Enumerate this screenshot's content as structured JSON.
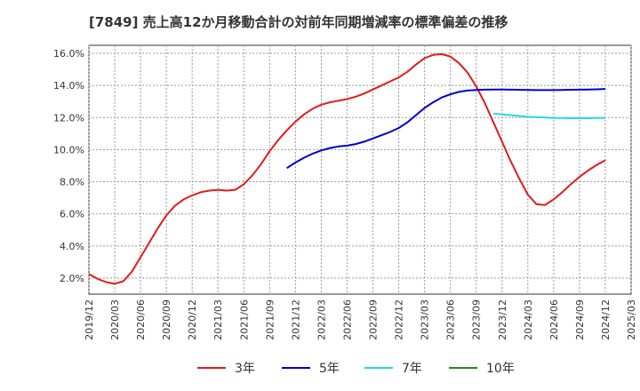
{
  "chart_data": {
    "type": "line",
    "title": "[7849]  売上高12か月移動合計の対前年同期増減率の標準偏差の推移",
    "xlabel": "",
    "ylabel": "",
    "ylim": [
      1.0,
      16.5
    ],
    "yticks": [
      "2.0%",
      "4.0%",
      "6.0%",
      "8.0%",
      "10.0%",
      "12.0%",
      "14.0%",
      "16.0%"
    ],
    "ytick_values": [
      2,
      4,
      6,
      8,
      10,
      12,
      14,
      16
    ],
    "xticks": [
      "2019/12",
      "2020/03",
      "2020/06",
      "2020/09",
      "2020/12",
      "2021/03",
      "2021/06",
      "2021/09",
      "2021/12",
      "2022/03",
      "2022/06",
      "2022/09",
      "2022/12",
      "2023/03",
      "2023/06",
      "2023/09",
      "2023/12",
      "2024/03",
      "2024/06",
      "2024/09",
      "2024/12",
      "2025/03"
    ],
    "grid": true,
    "legend_position": "bottom",
    "colors": {
      "3年": "#e31a1c",
      "5年": "#0000cc",
      "7年": "#22dddd",
      "10年": "#228b22"
    },
    "series": [
      {
        "name": "3年",
        "color": "#e31a1c",
        "points": [
          [
            "2019/12",
            2.25
          ],
          [
            "2020/01",
            1.95
          ],
          [
            "2020/02",
            1.75
          ],
          [
            "2020/03",
            1.65
          ],
          [
            "2020/04",
            1.8
          ],
          [
            "2020/05",
            2.4
          ],
          [
            "2020/06",
            3.3
          ],
          [
            "2020/07",
            4.2
          ],
          [
            "2020/08",
            5.1
          ],
          [
            "2020/09",
            5.9
          ],
          [
            "2020/10",
            6.5
          ],
          [
            "2020/11",
            6.9
          ],
          [
            "2020/12",
            7.15
          ],
          [
            "2021/01",
            7.35
          ],
          [
            "2021/02",
            7.45
          ],
          [
            "2021/03",
            7.5
          ],
          [
            "2021/04",
            7.45
          ],
          [
            "2021/05",
            7.5
          ],
          [
            "2021/06",
            7.85
          ],
          [
            "2021/07",
            8.4
          ],
          [
            "2021/08",
            9.1
          ],
          [
            "2021/09",
            9.9
          ],
          [
            "2021/10",
            10.6
          ],
          [
            "2021/11",
            11.2
          ],
          [
            "2021/12",
            11.75
          ],
          [
            "2022/01",
            12.2
          ],
          [
            "2022/02",
            12.55
          ],
          [
            "2022/03",
            12.8
          ],
          [
            "2022/04",
            12.95
          ],
          [
            "2022/05",
            13.05
          ],
          [
            "2022/06",
            13.15
          ],
          [
            "2022/07",
            13.3
          ],
          [
            "2022/08",
            13.5
          ],
          [
            "2022/09",
            13.75
          ],
          [
            "2022/10",
            14.0
          ],
          [
            "2022/11",
            14.25
          ],
          [
            "2022/12",
            14.5
          ],
          [
            "2023/01",
            14.85
          ],
          [
            "2023/02",
            15.3
          ],
          [
            "2023/03",
            15.7
          ],
          [
            "2023/04",
            15.9
          ],
          [
            "2023/05",
            15.95
          ],
          [
            "2023/06",
            15.8
          ],
          [
            "2023/07",
            15.4
          ],
          [
            "2023/08",
            14.8
          ],
          [
            "2023/09",
            13.95
          ],
          [
            "2023/10",
            12.9
          ],
          [
            "2023/11",
            11.7
          ],
          [
            "2023/12",
            10.5
          ],
          [
            "2024/01",
            9.3
          ],
          [
            "2024/02",
            8.2
          ],
          [
            "2024/03",
            7.2
          ],
          [
            "2024/04",
            6.6
          ],
          [
            "2024/05",
            6.55
          ],
          [
            "2024/06",
            6.9
          ],
          [
            "2024/07",
            7.35
          ],
          [
            "2024/08",
            7.85
          ],
          [
            "2024/09",
            8.3
          ],
          [
            "2024/10",
            8.7
          ],
          [
            "2024/11",
            9.05
          ],
          [
            "2024/12",
            9.35
          ]
        ]
      },
      {
        "name": "5年",
        "color": "#0000cc",
        "points": [
          [
            "2021/11",
            8.85
          ],
          [
            "2021/12",
            9.2
          ],
          [
            "2022/01",
            9.5
          ],
          [
            "2022/02",
            9.75
          ],
          [
            "2022/03",
            9.95
          ],
          [
            "2022/04",
            10.1
          ],
          [
            "2022/05",
            10.2
          ],
          [
            "2022/06",
            10.25
          ],
          [
            "2022/07",
            10.35
          ],
          [
            "2022/08",
            10.5
          ],
          [
            "2022/09",
            10.7
          ],
          [
            "2022/10",
            10.9
          ],
          [
            "2022/11",
            11.1
          ],
          [
            "2022/12",
            11.35
          ],
          [
            "2023/01",
            11.7
          ],
          [
            "2023/02",
            12.15
          ],
          [
            "2023/03",
            12.6
          ],
          [
            "2023/04",
            12.95
          ],
          [
            "2023/05",
            13.25
          ],
          [
            "2023/06",
            13.45
          ],
          [
            "2023/07",
            13.6
          ],
          [
            "2023/08",
            13.68
          ],
          [
            "2023/09",
            13.72
          ],
          [
            "2023/10",
            13.74
          ],
          [
            "2023/11",
            13.75
          ],
          [
            "2023/12",
            13.75
          ],
          [
            "2024/01",
            13.74
          ],
          [
            "2024/02",
            13.73
          ],
          [
            "2024/03",
            13.72
          ],
          [
            "2024/04",
            13.71
          ],
          [
            "2024/05",
            13.71
          ],
          [
            "2024/06",
            13.71
          ],
          [
            "2024/07",
            13.72
          ],
          [
            "2024/08",
            13.73
          ],
          [
            "2024/09",
            13.74
          ],
          [
            "2024/10",
            13.75
          ],
          [
            "2024/11",
            13.76
          ],
          [
            "2024/12",
            13.78
          ]
        ]
      },
      {
        "name": "7年",
        "color": "#22dddd",
        "points": [
          [
            "2023/11",
            12.25
          ],
          [
            "2023/12",
            12.2
          ],
          [
            "2024/01",
            12.15
          ],
          [
            "2024/02",
            12.1
          ],
          [
            "2024/03",
            12.05
          ],
          [
            "2024/04",
            12.02
          ],
          [
            "2024/05",
            12.0
          ],
          [
            "2024/06",
            11.98
          ],
          [
            "2024/07",
            11.97
          ],
          [
            "2024/08",
            11.96
          ],
          [
            "2024/09",
            11.96
          ],
          [
            "2024/10",
            11.96
          ],
          [
            "2024/11",
            11.97
          ],
          [
            "2024/12",
            11.98
          ]
        ]
      },
      {
        "name": "10年",
        "color": "#228b22",
        "points": []
      }
    ]
  }
}
